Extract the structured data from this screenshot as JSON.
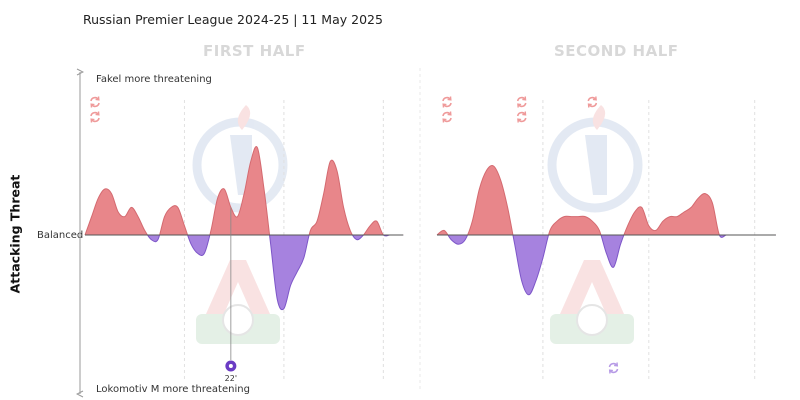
{
  "chart_data": {
    "type": "area",
    "subtitle": "Russian Premier League 2024-25 | 11 May 2025",
    "ylabel": "Attacking Threat",
    "top_label": "Fakel more threatening",
    "bottom_label": "Lokomotiv M more threatening",
    "baseline_label": "Balanced",
    "colors": {
      "positive": "#e8868a",
      "negative": "#a682df",
      "sub_home": "#ef9a9a",
      "sub_away": "#b79be6",
      "goal_marker": "#6b3cc4"
    },
    "halves": [
      {
        "name": "FIRST HALF",
        "minutes": [
          0,
          1,
          2,
          3,
          4,
          5,
          6,
          7,
          8,
          9,
          10,
          11,
          12,
          13,
          14,
          15,
          16,
          17,
          18,
          19,
          20,
          21,
          22,
          23,
          24,
          25,
          26,
          27,
          28,
          29,
          30,
          31,
          32,
          33,
          34,
          35,
          36,
          37,
          38,
          39,
          40,
          41,
          42,
          43,
          44,
          45,
          46,
          47,
          48
        ],
        "values": [
          0,
          4,
          8,
          10,
          9,
          5,
          4,
          6,
          4,
          1,
          -1,
          -1,
          4,
          6,
          6,
          2,
          -2,
          -4,
          -4,
          1,
          8,
          10,
          6,
          4,
          9,
          16,
          19,
          10,
          -2,
          -14,
          -16,
          -11,
          -8,
          -5,
          1,
          3,
          9,
          16,
          14,
          6,
          1,
          -1,
          0,
          2,
          3,
          0,
          0,
          0,
          0
        ],
        "subs": [
          {
            "team": "Fakel",
            "minute": 0,
            "row": 1
          },
          {
            "team": "Fakel",
            "minute": 0,
            "row": 2
          }
        ],
        "goals": [
          {
            "team": "Lokomotiv M",
            "minute": 22,
            "label": "22'"
          }
        ]
      },
      {
        "name": "SECOND HALF",
        "minutes": [
          0,
          1,
          2,
          3,
          4,
          5,
          6,
          7,
          8,
          9,
          10,
          11,
          12,
          13,
          14,
          15,
          16,
          17,
          18,
          19,
          20,
          21,
          22,
          23,
          24,
          25,
          26,
          27,
          28,
          29,
          30,
          31,
          32,
          33,
          34,
          35,
          36,
          37,
          38,
          39,
          40,
          41,
          42,
          43,
          44,
          45,
          46,
          47,
          48
        ],
        "values": [
          0,
          1,
          -1,
          -2,
          -1,
          3,
          10,
          14,
          15,
          12,
          6,
          -2,
          -10,
          -13,
          -10,
          -5,
          1,
          3,
          4,
          4,
          4,
          4,
          3,
          1,
          -4,
          -7,
          -2,
          2,
          5,
          6,
          2,
          1,
          3,
          4,
          4,
          5,
          6,
          8,
          9,
          7,
          0,
          0,
          0,
          0,
          0,
          0,
          0,
          0,
          0
        ],
        "subs": [
          {
            "team": "Fakel",
            "minute": 0,
            "row": 1
          },
          {
            "team": "Fakel",
            "minute": 0,
            "row": 2
          },
          {
            "team": "Fakel",
            "minute": 12,
            "row": 1
          },
          {
            "team": "Fakel",
            "minute": 12,
            "row": 2
          },
          {
            "team": "Fakel",
            "minute": 22,
            "row": 1
          },
          {
            "team": "Lokomotiv M",
            "minute": 25,
            "row": 1
          }
        ],
        "goals": []
      }
    ],
    "ylim": [
      -20,
      21
    ],
    "grid": "dashed vertical lines every 15 minutes"
  }
}
